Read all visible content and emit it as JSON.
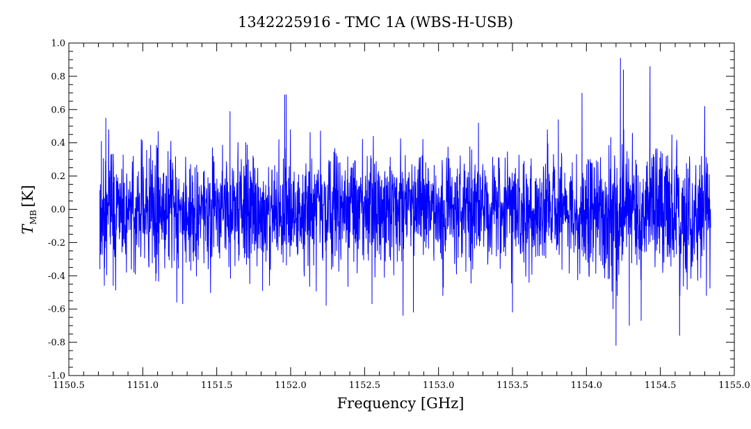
{
  "chart_data": {
    "type": "line",
    "title": "1342225916 - TMC 1A (WBS-H-USB)",
    "xlabel": "Frequency [GHz]",
    "ylabel_main": "T",
    "ylabel_sub": "MB",
    "ylabel_unit": "[K]",
    "xlim": [
      1150.5,
      1155.0
    ],
    "ylim": [
      -1.0,
      1.0
    ],
    "xticks": [
      "1150.5",
      "1151.0",
      "1151.5",
      "1152.0",
      "1152.5",
      "1153.0",
      "1153.5",
      "1154.0",
      "1154.5",
      "1155.0"
    ],
    "yticks": [
      "-1.0",
      "-0.8",
      "-0.6",
      "-0.4",
      "-0.2",
      "0.0",
      "0.2",
      "0.4",
      "0.6",
      "0.8",
      "1.0"
    ],
    "grid": false,
    "series": [
      {
        "color": "#0000ff",
        "x_start": 1150.71,
        "x_end": 1154.84,
        "noise_rms": 0.17,
        "points": [
          {
            "x": 1150.71,
            "y": -0.36
          },
          {
            "x": 1150.72,
            "y": 0.41
          },
          {
            "x": 1150.74,
            "y": -0.46
          },
          {
            "x": 1150.75,
            "y": 0.55
          },
          {
            "x": 1150.77,
            "y": 0.48
          },
          {
            "x": 1150.8,
            "y": -0.46
          },
          {
            "x": 1151.23,
            "y": -0.56
          },
          {
            "x": 1151.27,
            "y": -0.57
          },
          {
            "x": 1151.59,
            "y": 0.59
          },
          {
            "x": 1151.81,
            "y": -0.49
          },
          {
            "x": 1151.96,
            "y": 0.69
          },
          {
            "x": 1151.97,
            "y": 0.69
          },
          {
            "x": 1152.24,
            "y": -0.58
          },
          {
            "x": 1152.55,
            "y": -0.57
          },
          {
            "x": 1152.76,
            "y": -0.64
          },
          {
            "x": 1152.83,
            "y": -0.62
          },
          {
            "x": 1153.27,
            "y": 0.52
          },
          {
            "x": 1153.5,
            "y": -0.62
          },
          {
            "x": 1153.81,
            "y": 0.54
          },
          {
            "x": 1153.97,
            "y": 0.7
          },
          {
            "x": 1154.18,
            "y": -0.6
          },
          {
            "x": 1154.2,
            "y": -0.82
          },
          {
            "x": 1154.23,
            "y": 0.91
          },
          {
            "x": 1154.25,
            "y": 0.84
          },
          {
            "x": 1154.29,
            "y": -0.7
          },
          {
            "x": 1154.37,
            "y": -0.67
          },
          {
            "x": 1154.43,
            "y": 0.86
          },
          {
            "x": 1154.63,
            "y": -0.76
          },
          {
            "x": 1154.8,
            "y": 0.62
          }
        ]
      }
    ]
  }
}
